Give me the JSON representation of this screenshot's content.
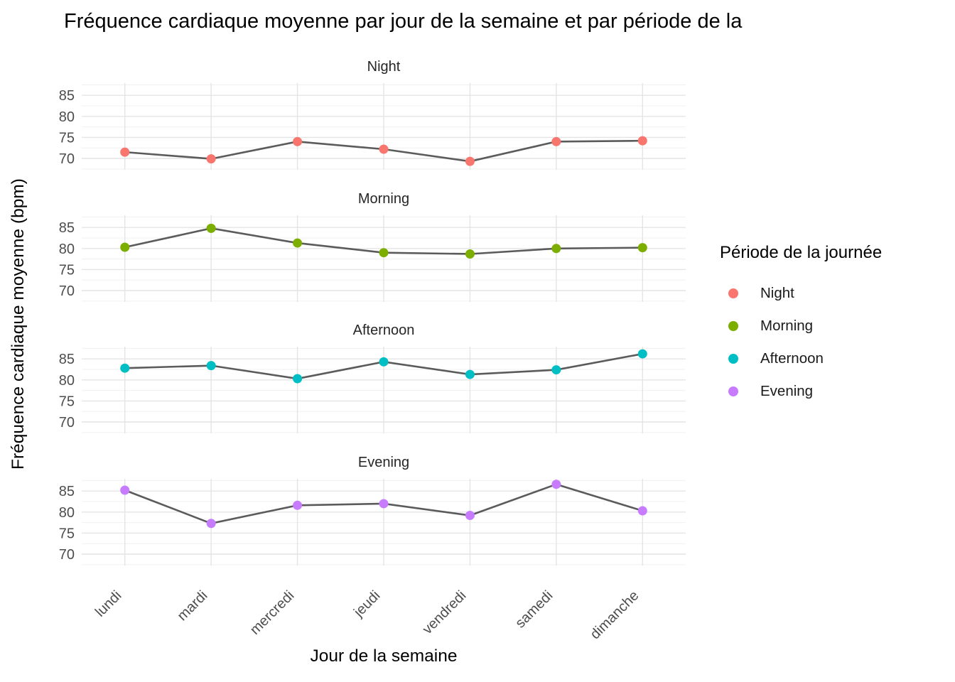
{
  "title": "Fréquence cardiaque moyenne par jour de la semaine et par période de la",
  "axes": {
    "x_title": "Jour de la semaine",
    "y_title": "Fréquence cardiaque moyenne (bpm)"
  },
  "legend": {
    "title": "Période de la journée",
    "items": [
      {
        "label": "Night",
        "color": "#F8766D"
      },
      {
        "label": "Morning",
        "color": "#7CAE00"
      },
      {
        "label": "Afternoon",
        "color": "#00BFC4"
      },
      {
        "label": "Evening",
        "color": "#C77CFF"
      }
    ]
  },
  "chart_data": {
    "type": "line",
    "title": "Fréquence cardiaque moyenne par jour de la semaine et par période de la",
    "xlabel": "Jour de la semaine",
    "ylabel": "Fréquence cardiaque moyenne (bpm)",
    "facet_variable": "Période de la journée",
    "categories": [
      "lundi",
      "mardi",
      "mercredi",
      "jeudi",
      "vendredi",
      "samedi",
      "dimanche"
    ],
    "series": [
      {
        "name": "Night",
        "color": "#F8766D",
        "values": [
          71.5,
          69.9,
          74.0,
          72.2,
          69.3,
          74.0,
          74.2
        ]
      },
      {
        "name": "Morning",
        "color": "#7CAE00",
        "values": [
          80.3,
          84.8,
          81.3,
          79.0,
          78.7,
          80.0,
          80.2
        ]
      },
      {
        "name": "Afternoon",
        "color": "#00BFC4",
        "values": [
          82.8,
          83.4,
          80.3,
          84.3,
          81.3,
          82.4,
          86.2
        ]
      },
      {
        "name": "Evening",
        "color": "#C77CFF",
        "values": [
          85.2,
          77.3,
          81.6,
          82.0,
          79.2,
          86.6,
          80.3
        ]
      }
    ],
    "y_ticks": [
      70,
      75,
      80,
      85
    ],
    "y_minor_ticks": [
      67.5,
      72.5,
      77.5,
      82.5,
      87.5
    ],
    "ylim": [
      67.3,
      87.9
    ],
    "grid": true,
    "legend_position": "right",
    "line_color": "#5b5b5b",
    "major_grid_color": "#e4e4e4",
    "minor_grid_color": "#f0f0f0",
    "tick_label_color": "#4d4d4d"
  }
}
